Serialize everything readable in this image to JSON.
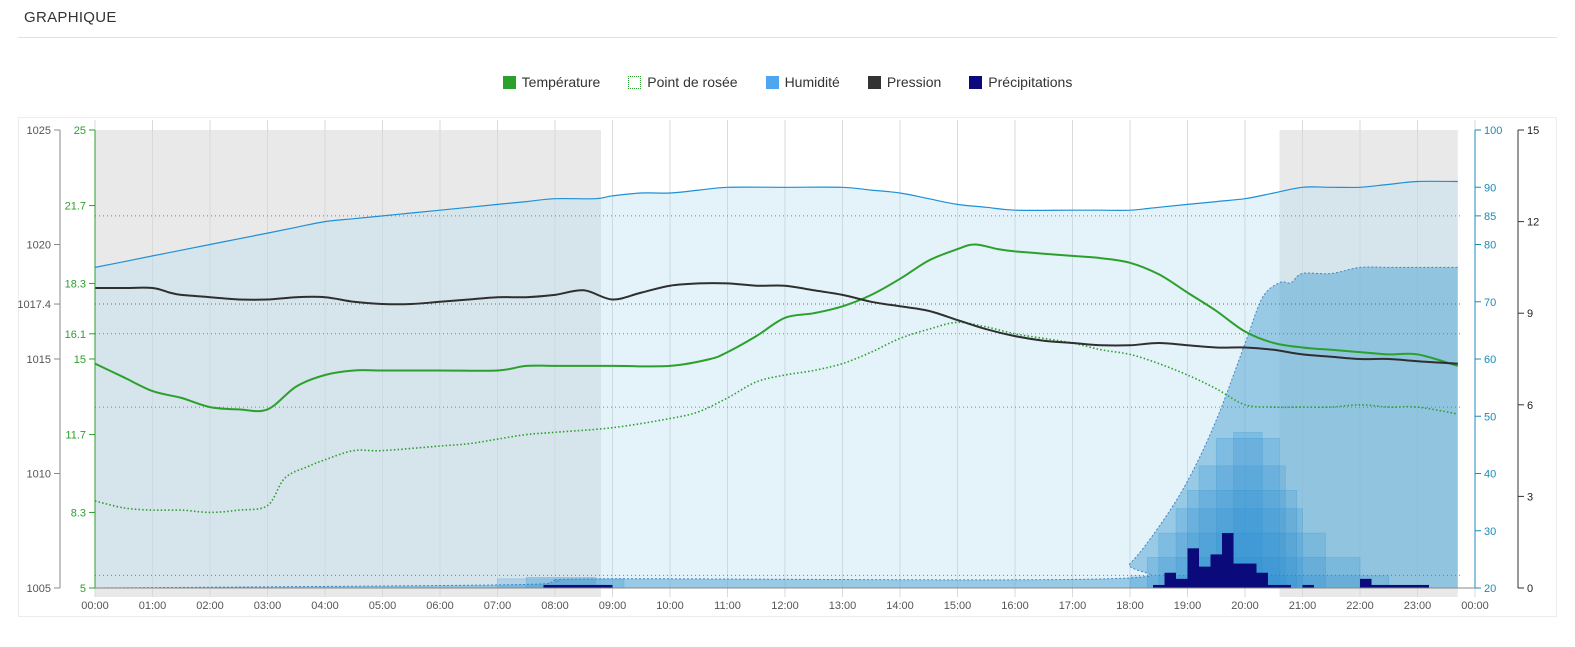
{
  "header": {
    "title": "GRAPHIQUE"
  },
  "legend": {
    "items": [
      {
        "label": "Température",
        "color": "#2ca02c",
        "style": "solid"
      },
      {
        "label": "Point de rosée",
        "color": "#2ca02c",
        "style": "dotted"
      },
      {
        "label": "Humidité",
        "color": "#4da6ef",
        "style": "solid"
      },
      {
        "label": "Pression",
        "color": "#333333",
        "style": "solid"
      },
      {
        "label": "Précipitations",
        "color": "#0a0a7a",
        "style": "solid"
      }
    ]
  },
  "chart_data": {
    "type": "line",
    "x_unit": "hours",
    "x_ticks": [
      "00:00",
      "01:00",
      "02:00",
      "03:00",
      "04:00",
      "05:00",
      "06:00",
      "07:00",
      "08:00",
      "09:00",
      "10:00",
      "11:00",
      "12:00",
      "13:00",
      "14:00",
      "15:00",
      "16:00",
      "17:00",
      "18:00",
      "19:00",
      "20:00",
      "21:00",
      "22:00",
      "23:00",
      "00:00"
    ],
    "xlim": [
      0,
      24
    ],
    "night_shading": [
      [
        0,
        8.8
      ],
      [
        20.6,
        23.7
      ]
    ],
    "grid": true,
    "legend_position": "top-center",
    "axes": {
      "pressure": {
        "side": "left-outer",
        "range": [
          1005,
          1025
        ],
        "ticks": [
          "1005",
          "1010",
          "1015",
          "1017.4",
          "1020",
          "1025"
        ],
        "color": "#555555"
      },
      "temperature": {
        "side": "left-inner",
        "range": [
          5,
          25
        ],
        "ticks": [
          "5",
          "8.3",
          "11.7",
          "15",
          "16.1",
          "18.3",
          "21.7",
          "25"
        ],
        "color": "#2ca02c"
      },
      "humidity": {
        "side": "right-inner",
        "range": [
          20,
          100
        ],
        "ticks": [
          "20",
          "30",
          "40",
          "50",
          "60",
          "70",
          "80",
          "85",
          "90",
          "100"
        ],
        "color": "#1a8bb8"
      },
      "precipitation": {
        "side": "right-outer",
        "range": [
          0,
          15
        ],
        "ticks": [
          "0",
          "3",
          "6",
          "9",
          "12",
          "15"
        ],
        "color": "#222222"
      }
    },
    "reference_lines": [
      {
        "axis": "pressure",
        "value": 1017.4
      },
      {
        "axis": "temperature",
        "value": 16.1
      },
      {
        "axis": "temperature",
        "value": 12.9
      },
      {
        "axis": "humidity",
        "value": 85
      },
      {
        "axis": "humidity",
        "value": 22.2
      }
    ],
    "series": [
      {
        "name": "Température",
        "axis": "temperature",
        "style": "solid",
        "color": "#2ca02c",
        "x": [
          0,
          0.5,
          1,
          1.5,
          2,
          2.5,
          3,
          3.5,
          4,
          4.5,
          5,
          6,
          7,
          7.5,
          8,
          9,
          10,
          10.7,
          11,
          11.5,
          12,
          12.5,
          13,
          13.5,
          14,
          14.5,
          15,
          15.3,
          15.7,
          16,
          16.5,
          17,
          17.5,
          18,
          18.5,
          19,
          19.5,
          20,
          20.5,
          21,
          21.5,
          22,
          22.5,
          23,
          23.7
        ],
        "y": [
          14.8,
          14.2,
          13.6,
          13.3,
          12.9,
          12.8,
          12.8,
          13.8,
          14.3,
          14.5,
          14.5,
          14.5,
          14.5,
          14.7,
          14.7,
          14.7,
          14.7,
          15.0,
          15.3,
          16.0,
          16.8,
          17.0,
          17.3,
          17.8,
          18.5,
          19.3,
          19.8,
          20.0,
          19.8,
          19.7,
          19.6,
          19.5,
          19.4,
          19.2,
          18.7,
          17.9,
          17.1,
          16.2,
          15.7,
          15.5,
          15.4,
          15.3,
          15.2,
          15.2,
          14.7
        ],
        "values": [
          14.8,
          14.2,
          13.6,
          13.3,
          12.9,
          12.8,
          12.8,
          13.8,
          14.3,
          14.5,
          14.5,
          14.5,
          14.5,
          14.7,
          14.7,
          14.7,
          14.7,
          15.0,
          15.3,
          16.0,
          16.8,
          17.0,
          17.3,
          17.8,
          18.5,
          19.3,
          19.8,
          20.0,
          19.8,
          19.7,
          19.6,
          19.5,
          19.4,
          19.2,
          18.7,
          17.9,
          17.1,
          16.2,
          15.7,
          15.5,
          15.4,
          15.3,
          15.2,
          15.2,
          14.7
        ]
      },
      {
        "name": "Point de rosée",
        "axis": "temperature",
        "style": "dotted",
        "color": "#2ca02c",
        "x": [
          0,
          0.5,
          1,
          1.5,
          2,
          2.5,
          3,
          3.3,
          3.7,
          4,
          4.5,
          5,
          6,
          6.5,
          7,
          7.5,
          8,
          9,
          10,
          10.5,
          11,
          11.5,
          12,
          12.5,
          13,
          13.5,
          14,
          14.5,
          15,
          15.5,
          16,
          16.5,
          17,
          17.5,
          18,
          18.5,
          19,
          19.5,
          20,
          20.5,
          21,
          21.5,
          22,
          22.5,
          23,
          23.7
        ],
        "y": [
          8.8,
          8.5,
          8.4,
          8.4,
          8.3,
          8.4,
          8.6,
          9.8,
          10.3,
          10.6,
          11.0,
          11.0,
          11.2,
          11.3,
          11.5,
          11.7,
          11.8,
          12.0,
          12.4,
          12.7,
          13.3,
          14.0,
          14.3,
          14.5,
          14.8,
          15.3,
          15.9,
          16.3,
          16.6,
          16.4,
          16.1,
          15.9,
          15.7,
          15.4,
          15.2,
          14.8,
          14.3,
          13.7,
          13.0,
          12.9,
          12.9,
          12.9,
          13.0,
          12.9,
          12.9,
          12.6
        ],
        "values": [
          8.8,
          8.5,
          8.4,
          8.4,
          8.3,
          8.4,
          8.6,
          9.8,
          10.3,
          10.6,
          11.0,
          11.0,
          11.2,
          11.3,
          11.5,
          11.7,
          11.8,
          12.0,
          12.4,
          12.7,
          13.3,
          14.0,
          14.3,
          14.5,
          14.8,
          15.3,
          15.9,
          16.3,
          16.6,
          16.4,
          16.1,
          15.9,
          15.7,
          15.4,
          15.2,
          14.8,
          14.3,
          13.7,
          13.0,
          12.9,
          12.9,
          12.9,
          13.0,
          12.9,
          12.9,
          12.6
        ]
      },
      {
        "name": "Humidité",
        "axis": "humidity",
        "style": "solid",
        "color": "#4da6ef",
        "x": [
          0,
          0.5,
          1,
          1.5,
          2,
          2.5,
          3,
          3.5,
          4,
          4.5,
          5,
          5.5,
          6,
          6.5,
          7,
          7.5,
          8,
          8.7,
          9,
          9.5,
          10,
          10.5,
          11,
          12,
          13,
          13.5,
          14,
          14.5,
          15,
          15.5,
          16,
          17,
          17.5,
          18,
          18.5,
          19,
          19.5,
          20,
          20.5,
          21,
          21.5,
          22,
          22.5,
          23,
          23.7
        ],
        "y": [
          76,
          77,
          78,
          79,
          80,
          81,
          82,
          83,
          84,
          84.5,
          85,
          85.5,
          86,
          86.5,
          87,
          87.5,
          88,
          88,
          88.5,
          89,
          89,
          89.5,
          90,
          90,
          90,
          89.5,
          89,
          88,
          87,
          86.5,
          86,
          86,
          86,
          86,
          86.5,
          87,
          87.5,
          88,
          89,
          90,
          90,
          90,
          90.5,
          91,
          91
        ],
        "values": [
          76,
          77,
          78,
          79,
          80,
          81,
          82,
          83,
          84,
          84.5,
          85,
          85.5,
          86,
          86.5,
          87,
          87.5,
          88,
          88,
          88.5,
          89,
          89,
          89.5,
          90,
          90,
          90,
          89.5,
          89,
          88,
          87,
          86.5,
          86,
          86,
          86,
          86,
          86.5,
          87,
          87.5,
          88,
          89,
          90,
          90,
          90,
          90.5,
          91,
          91
        ]
      },
      {
        "name": "Pression",
        "axis": "pressure",
        "style": "solid",
        "color": "#333333",
        "x": [
          0,
          0.5,
          1,
          1.3,
          1.5,
          2,
          2.5,
          3,
          3.5,
          4,
          4.5,
          5,
          5.5,
          6,
          6.5,
          7,
          7.5,
          8,
          8.5,
          9,
          9.5,
          10,
          10.5,
          11,
          11.5,
          12,
          12.5,
          13,
          13.5,
          14,
          14.5,
          15,
          15.5,
          16,
          16.5,
          17,
          17.5,
          18,
          18.5,
          19,
          19.5,
          20,
          20.5,
          21,
          21.5,
          22,
          22.5,
          23,
          23.7
        ],
        "y": [
          1018.1,
          1018.1,
          1018.1,
          1017.9,
          1017.8,
          1017.7,
          1017.6,
          1017.6,
          1017.7,
          1017.7,
          1017.5,
          1017.4,
          1017.4,
          1017.5,
          1017.6,
          1017.7,
          1017.7,
          1017.8,
          1018.0,
          1017.6,
          1017.9,
          1018.2,
          1018.3,
          1018.3,
          1018.2,
          1018.2,
          1018.0,
          1017.8,
          1017.5,
          1017.3,
          1017.1,
          1016.7,
          1016.3,
          1016.0,
          1015.8,
          1015.7,
          1015.6,
          1015.6,
          1015.7,
          1015.6,
          1015.5,
          1015.5,
          1015.4,
          1015.2,
          1015.1,
          1015.0,
          1015.0,
          1014.9,
          1014.8
        ],
        "values": [
          1018.1,
          1018.1,
          1018.1,
          1017.9,
          1017.8,
          1017.7,
          1017.6,
          1017.6,
          1017.7,
          1017.7,
          1017.5,
          1017.4,
          1017.4,
          1017.5,
          1017.6,
          1017.7,
          1017.7,
          1017.8,
          1018.0,
          1017.6,
          1017.9,
          1018.2,
          1018.3,
          1018.3,
          1018.2,
          1018.2,
          1018.0,
          1017.8,
          1017.5,
          1017.3,
          1017.1,
          1016.7,
          1016.3,
          1016.0,
          1015.8,
          1015.7,
          1015.6,
          1015.6,
          1015.7,
          1015.6,
          1015.5,
          1015.5,
          1015.4,
          1015.2,
          1015.1,
          1015.0,
          1015.0,
          1014.9,
          1014.8
        ]
      },
      {
        "name": "Précipitations",
        "axis": "precipitation",
        "style": "bars",
        "color": "#0a0a7a",
        "x": [
          7.6,
          7.8,
          8.0,
          8.2,
          8.4,
          8.6,
          8.8,
          18.2,
          18.4,
          18.6,
          18.8,
          19.0,
          19.2,
          19.4,
          19.6,
          19.8,
          20.0,
          20.2,
          20.4,
          20.6,
          20.8,
          21.0,
          21.2,
          21.4,
          21.6,
          21.8,
          22.0,
          22.2,
          22.4,
          22.6,
          22.8,
          23.0,
          23.2
        ],
        "y": [
          0,
          0.1,
          0.1,
          0.1,
          0.1,
          0.1,
          0.1,
          0,
          0.1,
          0.5,
          0.3,
          1.3,
          0.7,
          1.1,
          1.8,
          0.8,
          0.8,
          0.5,
          0.1,
          0.1,
          0,
          0.1,
          0,
          0,
          0,
          0,
          0.3,
          0.1,
          0.1,
          0.1,
          0.1,
          0.1,
          0
        ],
        "values": [
          0,
          0.1,
          0.1,
          0.1,
          0.1,
          0.1,
          0.1,
          0,
          0.1,
          0.5,
          0.3,
          1.3,
          0.7,
          1.1,
          1.8,
          0.8,
          0.8,
          0.5,
          0.1,
          0.1,
          0,
          0.1,
          0,
          0,
          0,
          0,
          0.3,
          0.1,
          0.1,
          0.1,
          0.1,
          0.1,
          0
        ]
      }
    ],
    "precipitation_probability": {
      "axis": "precipitation",
      "x": [
        0,
        7,
        8,
        8.9,
        17.6,
        18,
        18.5,
        19,
        19.5,
        20,
        20.3,
        20.6,
        20.8,
        21,
        21.5,
        22,
        22.5,
        23,
        23.7
      ],
      "y": [
        0,
        0.1,
        0.2,
        0.3,
        0.3,
        0.8,
        2,
        3.5,
        5.5,
        8,
        9.5,
        10,
        10,
        10.3,
        10.3,
        10.5,
        10.5,
        10.5,
        10.5
      ]
    },
    "rain_ensemble": [
      {
        "x0": 18.0,
        "x1": 22.5,
        "y": 0.4
      },
      {
        "x0": 18.3,
        "x1": 22.0,
        "y": 1.0
      },
      {
        "x0": 18.5,
        "x1": 21.4,
        "y": 1.8
      },
      {
        "x0": 18.8,
        "x1": 21.0,
        "y": 2.6
      },
      {
        "x0": 19.0,
        "x1": 20.9,
        "y": 3.2
      },
      {
        "x0": 19.2,
        "x1": 20.7,
        "y": 4.0
      },
      {
        "x0": 19.5,
        "x1": 20.6,
        "y": 4.9
      },
      {
        "x0": 19.8,
        "x1": 20.3,
        "y": 5.1
      },
      {
        "x0": 7.0,
        "x1": 9.2,
        "y": 0.3
      },
      {
        "x0": 7.5,
        "x1": 8.7,
        "y": 0.35
      }
    ]
  }
}
